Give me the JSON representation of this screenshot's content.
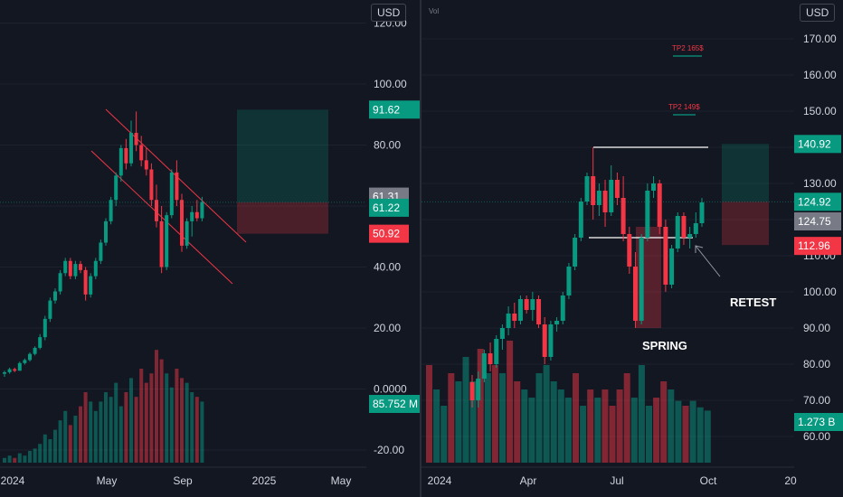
{
  "left_chart": {
    "currency": "USD",
    "y_ticks": [
      "-20.00",
      "0.0000",
      "20.00",
      "40.00",
      "60.00",
      "80.00",
      "100.00",
      "120.00"
    ],
    "x_ticks": [
      "2024",
      "May",
      "Sep",
      "2025",
      "May"
    ],
    "price_badges": [
      {
        "label": "91.62",
        "color": "#089981"
      },
      {
        "label": "61.31",
        "color": "#787b86"
      },
      {
        "label": "61.22",
        "color": "#089981"
      },
      {
        "label": "50.92",
        "color": "#f23645"
      },
      {
        "label": "85.752 M",
        "color": "#089981"
      }
    ]
  },
  "right_chart": {
    "currency": "USD",
    "volume_label": "Vol",
    "y_ticks": [
      "60.00",
      "70.00",
      "80.00",
      "90.00",
      "100.00",
      "110.00",
      "120.00",
      "130.00",
      "140.00",
      "150.00",
      "160.00",
      "170.00"
    ],
    "x_ticks": [
      "2024",
      "Apr",
      "Jul",
      "Oct",
      "20"
    ],
    "price_badges": [
      {
        "label": "140.92",
        "color": "#089981"
      },
      {
        "label": "124.92",
        "color": "#089981"
      },
      {
        "label": "124.75",
        "color": "#787b86"
      },
      {
        "label": "112.96",
        "color": "#f23645"
      },
      {
        "label": "1.273 B",
        "color": "#089981"
      }
    ],
    "annotations": {
      "tp2a": "TP2 165$",
      "tp2b": "TP2 149$",
      "spring": "SPRING",
      "retest": "RETEST"
    }
  },
  "chart_data": [
    {
      "type": "candlestick",
      "y_axis_range": [
        -25,
        125
      ],
      "x_axis_labels": [
        "2024",
        "May",
        "Sep",
        "2025",
        "May"
      ],
      "annotations": [
        "long position: target 91.62, entry 61.22, stop 50.92",
        "descending channel"
      ],
      "candles": [
        {
          "o": 5,
          "h": 6,
          "l": 4,
          "c": 5.5
        },
        {
          "o": 5.5,
          "h": 7,
          "l": 5,
          "c": 6.5
        },
        {
          "o": 6.5,
          "h": 7,
          "l": 5.5,
          "c": 6
        },
        {
          "o": 6,
          "h": 9,
          "l": 6,
          "c": 8.5
        },
        {
          "o": 8.5,
          "h": 10,
          "l": 8,
          "c": 9.5
        },
        {
          "o": 9.5,
          "h": 12,
          "l": 9,
          "c": 11.5
        },
        {
          "o": 11.5,
          "h": 14,
          "l": 11,
          "c": 13.5
        },
        {
          "o": 13.5,
          "h": 18,
          "l": 13,
          "c": 17
        },
        {
          "o": 17,
          "h": 24,
          "l": 16,
          "c": 23
        },
        {
          "o": 23,
          "h": 30,
          "l": 22,
          "c": 29
        },
        {
          "o": 29,
          "h": 33,
          "l": 28,
          "c": 32
        },
        {
          "o": 32,
          "h": 39,
          "l": 31,
          "c": 38
        },
        {
          "o": 38,
          "h": 43,
          "l": 37,
          "c": 42
        },
        {
          "o": 42,
          "h": 43,
          "l": 36,
          "c": 37
        },
        {
          "o": 37,
          "h": 42,
          "l": 36,
          "c": 41
        },
        {
          "o": 41,
          "h": 42,
          "l": 38,
          "c": 39
        },
        {
          "o": 39,
          "h": 40,
          "l": 29,
          "c": 31
        },
        {
          "o": 31,
          "h": 38,
          "l": 30,
          "c": 37
        },
        {
          "o": 37,
          "h": 43,
          "l": 36,
          "c": 42
        },
        {
          "o": 42,
          "h": 49,
          "l": 41,
          "c": 48
        },
        {
          "o": 48,
          "h": 56,
          "l": 47,
          "c": 55
        },
        {
          "o": 55,
          "h": 63,
          "l": 54,
          "c": 62
        },
        {
          "o": 62,
          "h": 71,
          "l": 60,
          "c": 70
        },
        {
          "o": 70,
          "h": 80,
          "l": 68,
          "c": 79
        },
        {
          "o": 79,
          "h": 82,
          "l": 72,
          "c": 74
        },
        {
          "o": 74,
          "h": 88,
          "l": 73,
          "c": 84
        },
        {
          "o": 84,
          "h": 91,
          "l": 78,
          "c": 80
        },
        {
          "o": 80,
          "h": 83,
          "l": 73,
          "c": 75
        },
        {
          "o": 75,
          "h": 79,
          "l": 70,
          "c": 72
        },
        {
          "o": 72,
          "h": 74,
          "l": 60,
          "c": 62
        },
        {
          "o": 62,
          "h": 67,
          "l": 53,
          "c": 55
        },
        {
          "o": 55,
          "h": 60,
          "l": 38,
          "c": 40
        },
        {
          "o": 40,
          "h": 58,
          "l": 39,
          "c": 57
        },
        {
          "o": 57,
          "h": 72,
          "l": 56,
          "c": 71
        },
        {
          "o": 71,
          "h": 75,
          "l": 60,
          "c": 62
        },
        {
          "o": 62,
          "h": 64,
          "l": 45,
          "c": 47
        },
        {
          "o": 47,
          "h": 56,
          "l": 46,
          "c": 55
        },
        {
          "o": 55,
          "h": 60,
          "l": 50,
          "c": 58
        },
        {
          "o": 58,
          "h": 62,
          "l": 55,
          "c": 56
        },
        {
          "o": 56,
          "h": 63,
          "l": 55,
          "c": 61.31
        }
      ],
      "volume": [
        2,
        3,
        2,
        4,
        3,
        5,
        6,
        8,
        12,
        10,
        14,
        18,
        22,
        16,
        20,
        24,
        30,
        26,
        22,
        26,
        30,
        28,
        34,
        24,
        30,
        36,
        28,
        40,
        34,
        38,
        48,
        44,
        38,
        32,
        40,
        36,
        34,
        30,
        28,
        26
      ]
    },
    {
      "type": "candlestick",
      "y_axis_range": [
        52,
        175
      ],
      "x_axis_labels": [
        "2024",
        "Apr",
        "Jul",
        "Oct",
        "20"
      ],
      "annotations": [
        "TP2 165$",
        "TP2 149$",
        "SPRING",
        "RETEST",
        "range high ~140",
        "range low ~115",
        "long position: target 140.92, entry 124.92, stop 112.96"
      ],
      "candles": [
        {
          "o": 75,
          "h": 77,
          "l": 68,
          "c": 70
        },
        {
          "o": 70,
          "h": 78,
          "l": 68,
          "c": 76
        },
        {
          "o": 76,
          "h": 84,
          "l": 75,
          "c": 83
        },
        {
          "o": 83,
          "h": 86,
          "l": 78,
          "c": 80
        },
        {
          "o": 80,
          "h": 88,
          "l": 79,
          "c": 87
        },
        {
          "o": 87,
          "h": 91,
          "l": 84,
          "c": 90
        },
        {
          "o": 90,
          "h": 96,
          "l": 88,
          "c": 94
        },
        {
          "o": 94,
          "h": 97,
          "l": 90,
          "c": 92
        },
        {
          "o": 92,
          "h": 99,
          "l": 91,
          "c": 98
        },
        {
          "o": 98,
          "h": 99,
          "l": 94,
          "c": 95
        },
        {
          "o": 95,
          "h": 100,
          "l": 92,
          "c": 98
        },
        {
          "o": 98,
          "h": 99,
          "l": 90,
          "c": 91
        },
        {
          "o": 91,
          "h": 93,
          "l": 80,
          "c": 82
        },
        {
          "o": 82,
          "h": 92,
          "l": 81,
          "c": 91
        },
        {
          "o": 91,
          "h": 93,
          "l": 89,
          "c": 92
        },
        {
          "o": 92,
          "h": 100,
          "l": 91,
          "c": 99
        },
        {
          "o": 99,
          "h": 108,
          "l": 98,
          "c": 107
        },
        {
          "o": 107,
          "h": 116,
          "l": 106,
          "c": 115
        },
        {
          "o": 115,
          "h": 126,
          "l": 114,
          "c": 125
        },
        {
          "o": 125,
          "h": 133,
          "l": 124,
          "c": 132
        },
        {
          "o": 132,
          "h": 140,
          "l": 120,
          "c": 124
        },
        {
          "o": 124,
          "h": 130,
          "l": 121,
          "c": 128
        },
        {
          "o": 128,
          "h": 131,
          "l": 118,
          "c": 122
        },
        {
          "o": 122,
          "h": 135,
          "l": 121,
          "c": 131
        },
        {
          "o": 131,
          "h": 133,
          "l": 124,
          "c": 126
        },
        {
          "o": 126,
          "h": 132,
          "l": 114,
          "c": 116
        },
        {
          "o": 116,
          "h": 118,
          "l": 105,
          "c": 107
        },
        {
          "o": 107,
          "h": 111,
          "l": 90,
          "c": 92
        },
        {
          "o": 92,
          "h": 116,
          "l": 91,
          "c": 115
        },
        {
          "o": 115,
          "h": 130,
          "l": 114,
          "c": 128
        },
        {
          "o": 128,
          "h": 132,
          "l": 126,
          "c": 130
        },
        {
          "o": 130,
          "h": 131,
          "l": 116,
          "c": 118
        },
        {
          "o": 118,
          "h": 120,
          "l": 100,
          "c": 102
        },
        {
          "o": 102,
          "h": 113,
          "l": 101,
          "c": 112
        },
        {
          "o": 112,
          "h": 122,
          "l": 111,
          "c": 121
        },
        {
          "o": 121,
          "h": 122,
          "l": 113,
          "c": 115
        },
        {
          "o": 115,
          "h": 118,
          "l": 112,
          "c": 116
        },
        {
          "o": 116,
          "h": 122,
          "l": 115,
          "c": 119
        },
        {
          "o": 119,
          "h": 126,
          "l": 118,
          "c": 124.75
        }
      ],
      "volume": [
        60,
        45,
        35,
        55,
        50,
        65,
        50,
        70,
        55,
        60,
        55,
        75,
        50,
        45,
        40,
        55,
        60,
        50,
        45,
        40,
        55,
        35,
        45,
        40,
        45,
        35,
        45,
        55,
        40,
        60,
        35,
        40,
        50,
        45,
        38,
        35,
        38,
        34,
        32
      ]
    }
  ]
}
